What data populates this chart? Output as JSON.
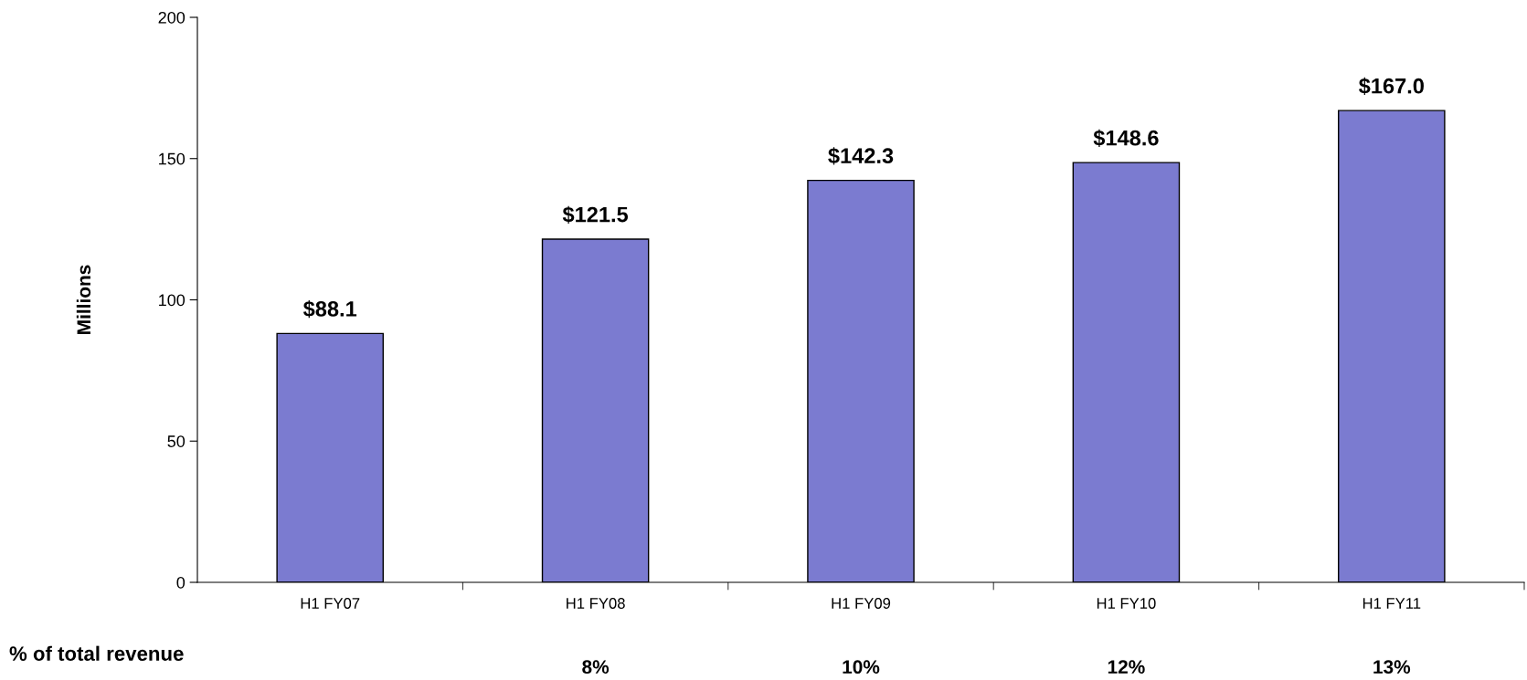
{
  "chart_data": {
    "type": "bar",
    "ylabel": "Millions",
    "categories": [
      "H1 FY07",
      "H1 FY08",
      "H1 FY09",
      "H1 FY10",
      "H1 FY11"
    ],
    "values": [
      88.1,
      121.5,
      142.3,
      148.6,
      167.0
    ],
    "value_labels": [
      "$88.1",
      "$121.5",
      "$142.3",
      "$148.6",
      "$167.0"
    ],
    "color": "#7b7bd0",
    "ylim": [
      0,
      200
    ],
    "yticks": [
      0,
      50,
      100,
      150,
      200
    ],
    "grid": false,
    "annotations": [
      "% of total revenue",
      "8%",
      "10%",
      "12%",
      "13%"
    ]
  }
}
